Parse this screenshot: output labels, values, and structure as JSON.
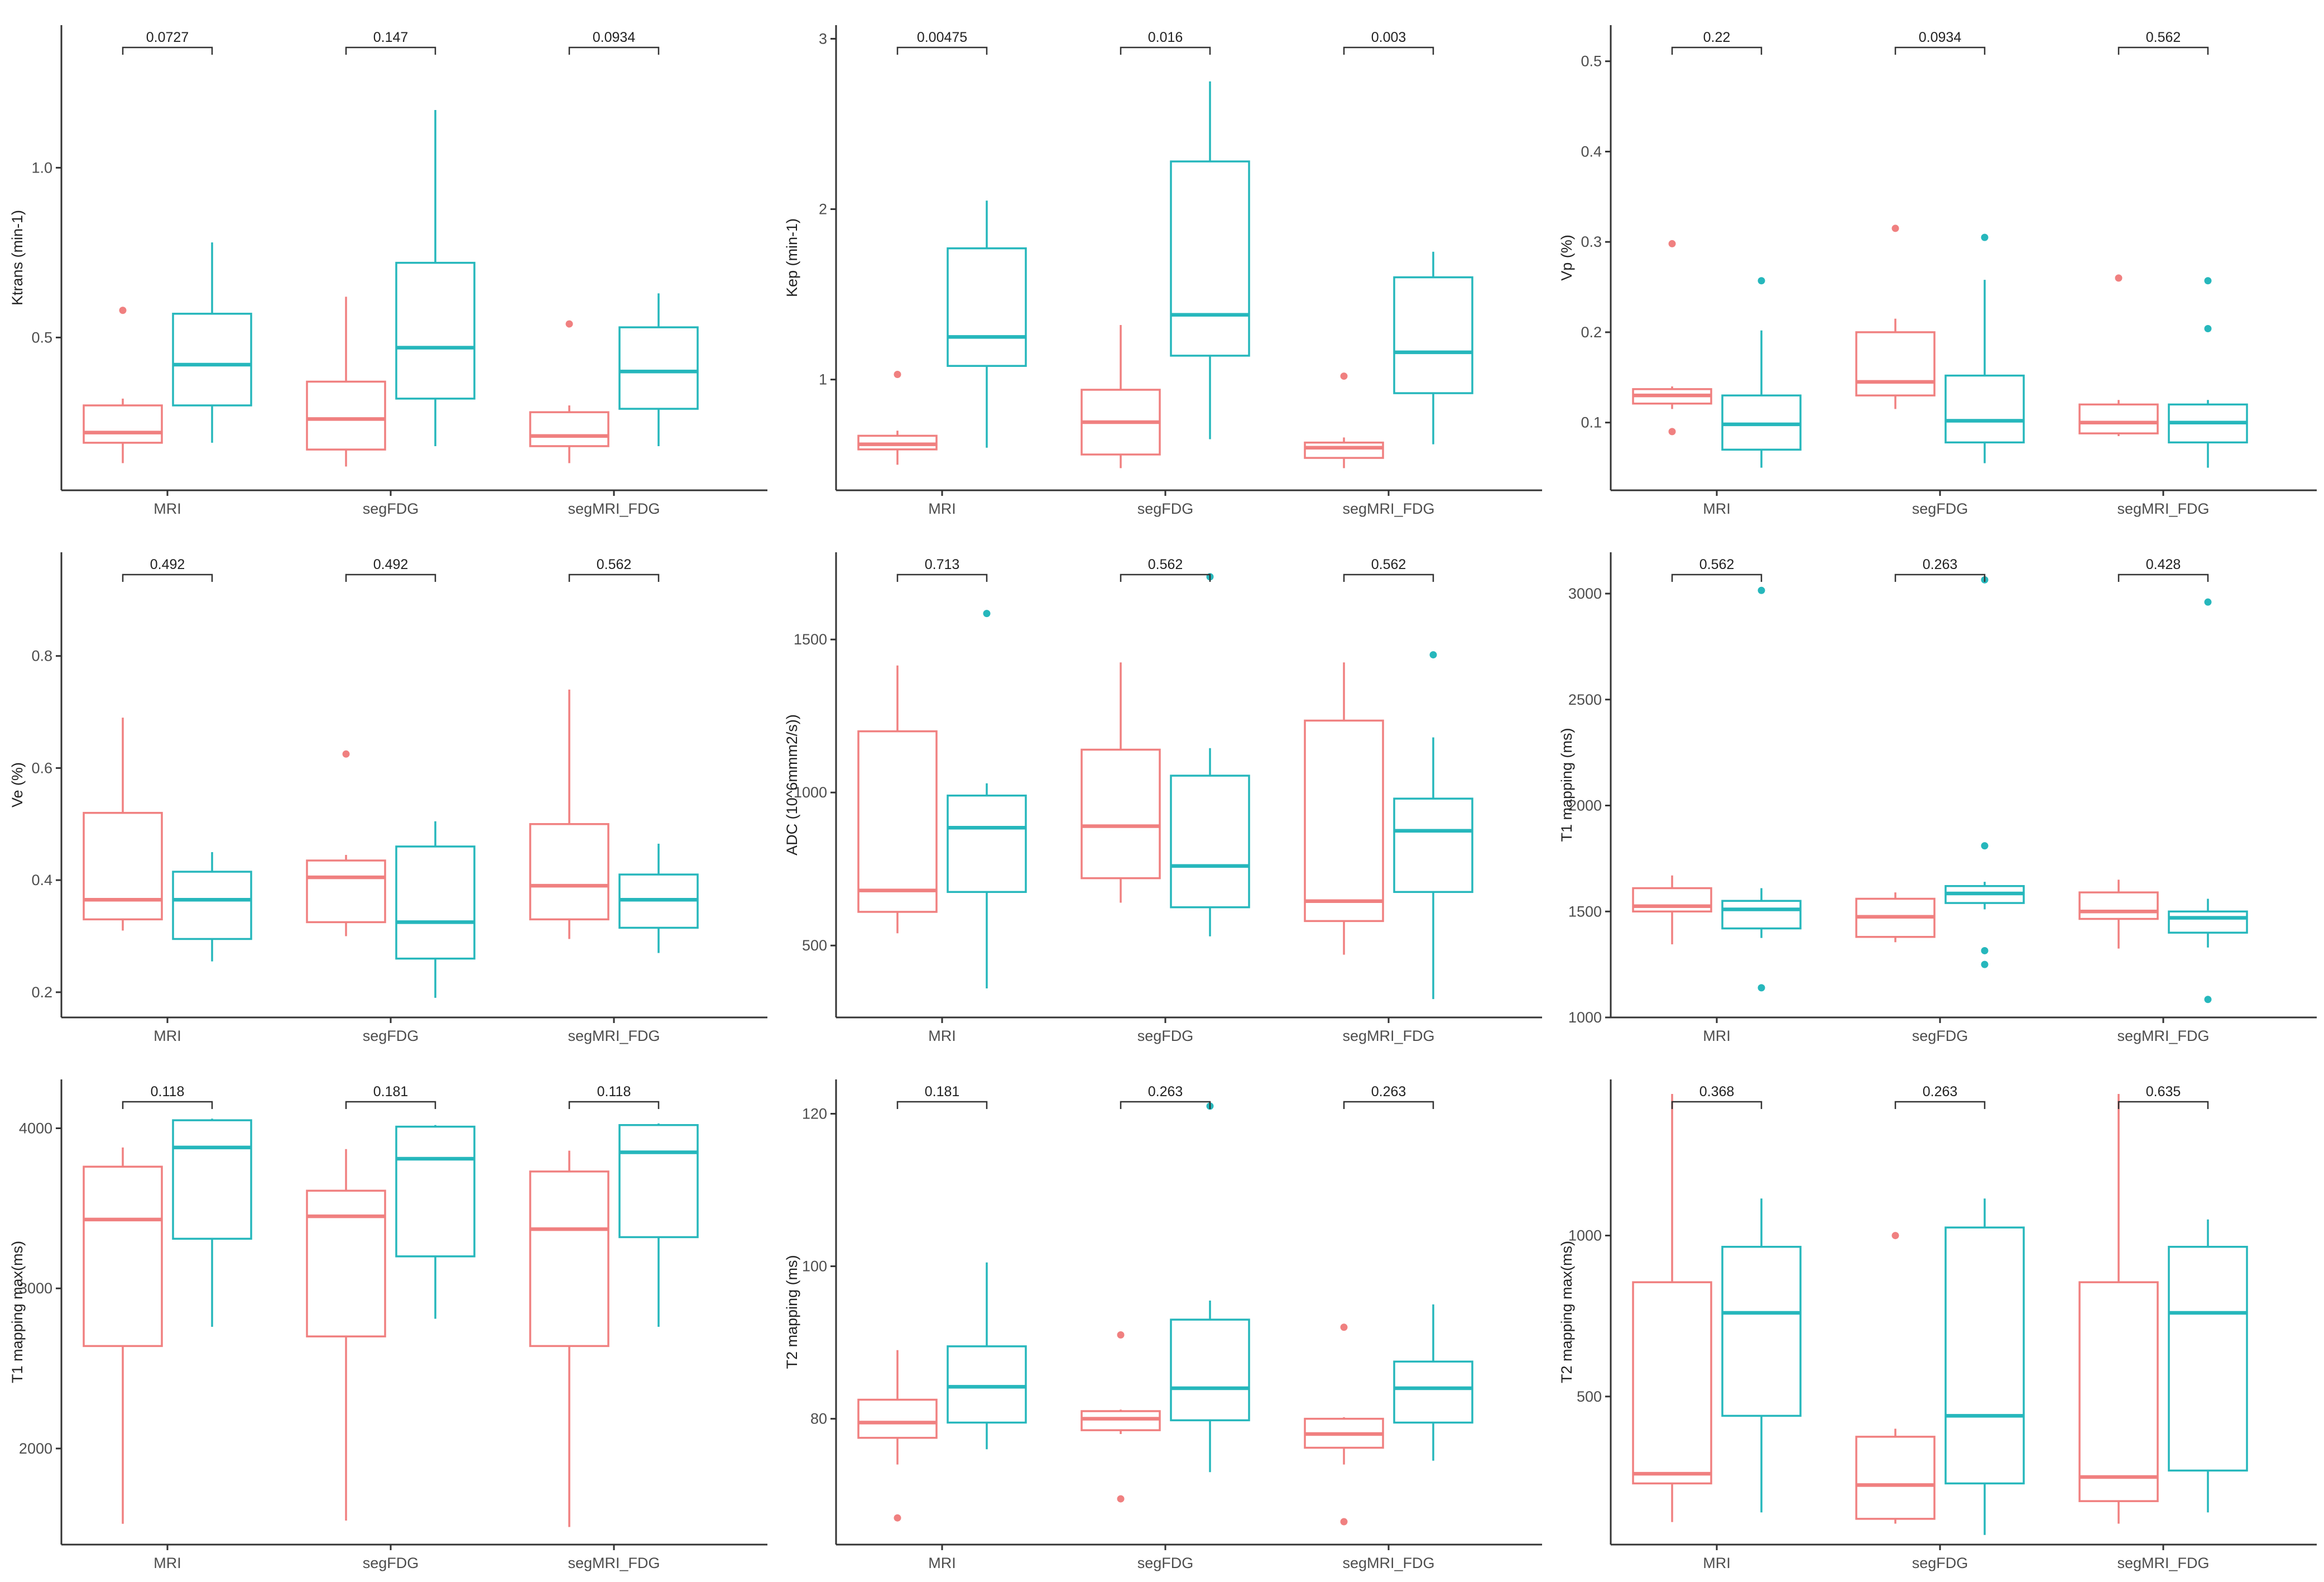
{
  "colors": {
    "group1": "#F08080",
    "group2": "#26B7BC",
    "axis": "#333333"
  },
  "chart_data": [
    {
      "type": "box",
      "ylabel": "Ktrans (min-1)",
      "ylim": [
        0.05,
        1.42
      ],
      "yticks": [
        {
          "v": 0.5,
          "label": "0.5"
        },
        {
          "v": 1.0,
          "label": "1.0"
        }
      ],
      "categories": [
        "MRI",
        "segFDG",
        "segMRI_FDG"
      ],
      "pvalues": [
        "0.0727",
        "0.147",
        "0.0934"
      ],
      "series": [
        {
          "name": "group1",
          "boxes": [
            {
              "wl": 0.13,
              "q1": 0.19,
              "med": 0.22,
              "q3": 0.3,
              "wh": 0.32,
              "out": [
                0.58
              ]
            },
            {
              "wl": 0.12,
              "q1": 0.17,
              "med": 0.26,
              "q3": 0.37,
              "wh": 0.62,
              "out": []
            },
            {
              "wl": 0.13,
              "q1": 0.18,
              "med": 0.21,
              "q3": 0.28,
              "wh": 0.3,
              "out": [
                0.54
              ]
            }
          ]
        },
        {
          "name": "group2",
          "boxes": [
            {
              "wl": 0.19,
              "q1": 0.3,
              "med": 0.42,
              "q3": 0.57,
              "wh": 0.78,
              "out": []
            },
            {
              "wl": 0.18,
              "q1": 0.32,
              "med": 0.47,
              "q3": 0.72,
              "wh": 1.17,
              "out": []
            },
            {
              "wl": 0.18,
              "q1": 0.29,
              "med": 0.4,
              "q3": 0.53,
              "wh": 0.63,
              "out": []
            }
          ]
        }
      ]
    },
    {
      "type": "box",
      "ylabel": "Kep (min-1)",
      "ylim": [
        0.35,
        3.08
      ],
      "yticks": [
        {
          "v": 1,
          "label": "1"
        },
        {
          "v": 2,
          "label": "2"
        },
        {
          "v": 3,
          "label": "3"
        }
      ],
      "categories": [
        "MRI",
        "segFDG",
        "segMRI_FDG"
      ],
      "pvalues": [
        "0.00475",
        "0.016",
        "0.003"
      ],
      "series": [
        {
          "name": "group1",
          "boxes": [
            {
              "wl": 0.5,
              "q1": 0.59,
              "med": 0.62,
              "q3": 0.67,
              "wh": 0.7,
              "out": [
                1.03
              ]
            },
            {
              "wl": 0.48,
              "q1": 0.56,
              "med": 0.75,
              "q3": 0.94,
              "wh": 1.32,
              "out": []
            },
            {
              "wl": 0.48,
              "q1": 0.54,
              "med": 0.6,
              "q3": 0.63,
              "wh": 0.66,
              "out": [
                1.02
              ]
            }
          ]
        },
        {
          "name": "group2",
          "boxes": [
            {
              "wl": 0.6,
              "q1": 1.08,
              "med": 1.25,
              "q3": 1.77,
              "wh": 2.05,
              "out": []
            },
            {
              "wl": 0.65,
              "q1": 1.14,
              "med": 1.38,
              "q3": 2.28,
              "wh": 2.75,
              "out": []
            },
            {
              "wl": 0.62,
              "q1": 0.92,
              "med": 1.16,
              "q3": 1.6,
              "wh": 1.75,
              "out": []
            }
          ]
        }
      ]
    },
    {
      "type": "box",
      "ylabel": "Vp (%)",
      "ylim": [
        0.025,
        0.54
      ],
      "yticks": [
        {
          "v": 0.1,
          "label": "0.1"
        },
        {
          "v": 0.2,
          "label": "0.2"
        },
        {
          "v": 0.3,
          "label": "0.3"
        },
        {
          "v": 0.4,
          "label": "0.4"
        },
        {
          "v": 0.5,
          "label": "0.5"
        }
      ],
      "categories": [
        "MRI",
        "segFDG",
        "segMRI_FDG"
      ],
      "pvalues": [
        "0.22",
        "0.0934",
        "0.562"
      ],
      "series": [
        {
          "name": "group1",
          "boxes": [
            {
              "wl": 0.115,
              "q1": 0.121,
              "med": 0.13,
              "q3": 0.137,
              "wh": 0.14,
              "out": [
                0.298,
                0.09
              ]
            },
            {
              "wl": 0.115,
              "q1": 0.13,
              "med": 0.145,
              "q3": 0.2,
              "wh": 0.215,
              "out": [
                0.315
              ]
            },
            {
              "wl": 0.085,
              "q1": 0.088,
              "med": 0.1,
              "q3": 0.12,
              "wh": 0.125,
              "out": [
                0.26
              ]
            }
          ]
        },
        {
          "name": "group2",
          "boxes": [
            {
              "wl": 0.05,
              "q1": 0.07,
              "med": 0.098,
              "q3": 0.13,
              "wh": 0.202,
              "out": [
                0.257
              ]
            },
            {
              "wl": 0.055,
              "q1": 0.078,
              "med": 0.102,
              "q3": 0.152,
              "wh": 0.258,
              "out": [
                0.305
              ]
            },
            {
              "wl": 0.05,
              "q1": 0.078,
              "med": 0.1,
              "q3": 0.12,
              "wh": 0.125,
              "out": [
                0.257,
                0.204
              ]
            }
          ]
        }
      ]
    },
    {
      "type": "box",
      "ylabel": "Ve (%)",
      "ylim": [
        0.155,
        0.985
      ],
      "yticks": [
        {
          "v": 0.2,
          "label": "0.2"
        },
        {
          "v": 0.4,
          "label": "0.4"
        },
        {
          "v": 0.6,
          "label": "0.6"
        },
        {
          "v": 0.8,
          "label": "0.8"
        }
      ],
      "categories": [
        "MRI",
        "segFDG",
        "segMRI_FDG"
      ],
      "pvalues": [
        "0.492",
        "0.492",
        "0.562"
      ],
      "series": [
        {
          "name": "group1",
          "boxes": [
            {
              "wl": 0.31,
              "q1": 0.33,
              "med": 0.365,
              "q3": 0.52,
              "wh": 0.69,
              "out": []
            },
            {
              "wl": 0.3,
              "q1": 0.325,
              "med": 0.405,
              "q3": 0.435,
              "wh": 0.445,
              "out": [
                0.625
              ]
            },
            {
              "wl": 0.295,
              "q1": 0.33,
              "med": 0.39,
              "q3": 0.5,
              "wh": 0.74,
              "out": []
            }
          ]
        },
        {
          "name": "group2",
          "boxes": [
            {
              "wl": 0.255,
              "q1": 0.295,
              "med": 0.365,
              "q3": 0.415,
              "wh": 0.45,
              "out": []
            },
            {
              "wl": 0.19,
              "q1": 0.26,
              "med": 0.325,
              "q3": 0.46,
              "wh": 0.505,
              "out": []
            },
            {
              "wl": 0.27,
              "q1": 0.315,
              "med": 0.365,
              "q3": 0.41,
              "wh": 0.465,
              "out": []
            }
          ]
        }
      ]
    },
    {
      "type": "box",
      "ylabel": "ADC (10^6mmm2/s))",
      "ylim": [
        265,
        1785
      ],
      "yticks": [
        {
          "v": 500,
          "label": "500"
        },
        {
          "v": 1000,
          "label": "1000"
        },
        {
          "v": 1500,
          "label": "1500"
        }
      ],
      "categories": [
        "MRI",
        "segFDG",
        "segMRI_FDG"
      ],
      "pvalues": [
        "0.713",
        "0.562",
        "0.562"
      ],
      "series": [
        {
          "name": "group1",
          "boxes": [
            {
              "wl": 540,
              "q1": 610,
              "med": 680,
              "q3": 1200,
              "wh": 1415,
              "out": []
            },
            {
              "wl": 640,
              "q1": 720,
              "med": 890,
              "q3": 1140,
              "wh": 1425,
              "out": []
            },
            {
              "wl": 470,
              "q1": 580,
              "med": 645,
              "q3": 1235,
              "wh": 1425,
              "out": []
            }
          ]
        },
        {
          "name": "group2",
          "boxes": [
            {
              "wl": 360,
              "q1": 675,
              "med": 885,
              "q3": 990,
              "wh": 1030,
              "out": [
                1585
              ]
            },
            {
              "wl": 530,
              "q1": 625,
              "med": 760,
              "q3": 1055,
              "wh": 1145,
              "out": [
                1705
              ]
            },
            {
              "wl": 325,
              "q1": 675,
              "med": 875,
              "q3": 980,
              "wh": 1180,
              "out": [
                1450
              ]
            }
          ]
        }
      ]
    },
    {
      "type": "box",
      "ylabel": "T1 mapping (ms)",
      "ylim": [
        1000,
        3195
      ],
      "yticks": [
        {
          "v": 1000,
          "label": "1000"
        },
        {
          "v": 1500,
          "label": "1500"
        },
        {
          "v": 2000,
          "label": "2000"
        },
        {
          "v": 2500,
          "label": "2500"
        },
        {
          "v": 3000,
          "label": "3000"
        }
      ],
      "categories": [
        "MRI",
        "segFDG",
        "segMRI_FDG"
      ],
      "pvalues": [
        "0.562",
        "0.263",
        "0.428"
      ],
      "series": [
        {
          "name": "group1",
          "boxes": [
            {
              "wl": 1345,
              "q1": 1500,
              "med": 1525,
              "q3": 1610,
              "wh": 1670,
              "out": []
            },
            {
              "wl": 1355,
              "q1": 1380,
              "med": 1475,
              "q3": 1560,
              "wh": 1590,
              "out": []
            },
            {
              "wl": 1325,
              "q1": 1465,
              "med": 1500,
              "q3": 1590,
              "wh": 1650,
              "out": []
            }
          ]
        },
        {
          "name": "group2",
          "boxes": [
            {
              "wl": 1375,
              "q1": 1420,
              "med": 1510,
              "q3": 1550,
              "wh": 1610,
              "out": [
                3015,
                1140
              ]
            },
            {
              "wl": 1510,
              "q1": 1540,
              "med": 1585,
              "q3": 1620,
              "wh": 1640,
              "out": [
                3065,
                1810,
                1315,
                1250
              ]
            },
            {
              "wl": 1330,
              "q1": 1400,
              "med": 1470,
              "q3": 1500,
              "wh": 1560,
              "out": [
                2960,
                1085
              ]
            }
          ]
        }
      ]
    },
    {
      "type": "box",
      "ylabel": "T1 mapping max(ms)",
      "ylim": [
        1400,
        4305
      ],
      "yticks": [
        {
          "v": 2000,
          "label": "2000"
        },
        {
          "v": 3000,
          "label": "3000"
        },
        {
          "v": 4000,
          "label": "4000"
        }
      ],
      "categories": [
        "MRI",
        "segFDG",
        "segMRI_FDG"
      ],
      "pvalues": [
        "0.118",
        "0.181",
        "0.118"
      ],
      "series": [
        {
          "name": "group1",
          "boxes": [
            {
              "wl": 1530,
              "q1": 2640,
              "med": 3430,
              "q3": 3760,
              "wh": 3880,
              "out": []
            },
            {
              "wl": 1550,
              "q1": 2700,
              "med": 3450,
              "q3": 3610,
              "wh": 3870,
              "out": []
            },
            {
              "wl": 1510,
              "q1": 2640,
              "med": 3370,
              "q3": 3730,
              "wh": 3860,
              "out": []
            }
          ]
        },
        {
          "name": "group2",
          "boxes": [
            {
              "wl": 2760,
              "q1": 3310,
              "med": 3880,
              "q3": 4050,
              "wh": 4060,
              "out": []
            },
            {
              "wl": 2810,
              "q1": 3200,
              "med": 3810,
              "q3": 4010,
              "wh": 4020,
              "out": []
            },
            {
              "wl": 2760,
              "q1": 3320,
              "med": 3850,
              "q3": 4020,
              "wh": 4030,
              "out": []
            }
          ]
        }
      ]
    },
    {
      "type": "box",
      "ylabel": "T2 mapping (ms)",
      "ylim": [
        63.5,
        124.5
      ],
      "yticks": [
        {
          "v": 80,
          "label": "80"
        },
        {
          "v": 100,
          "label": "100"
        },
        {
          "v": 120,
          "label": "120"
        }
      ],
      "categories": [
        "MRI",
        "segFDG",
        "segMRI_FDG"
      ],
      "pvalues": [
        "0.181",
        "0.263",
        "0.263"
      ],
      "series": [
        {
          "name": "group1",
          "boxes": [
            {
              "wl": 74,
              "q1": 77.5,
              "med": 79.5,
              "q3": 82.5,
              "wh": 89,
              "out": [
                67
              ]
            },
            {
              "wl": 78,
              "q1": 78.5,
              "med": 80,
              "q3": 81,
              "wh": 81.2,
              "out": [
                91,
                69.5
              ]
            },
            {
              "wl": 74,
              "q1": 76.2,
              "med": 78,
              "q3": 80,
              "wh": 80.2,
              "out": [
                92,
                66.5
              ]
            }
          ]
        },
        {
          "name": "group2",
          "boxes": [
            {
              "wl": 76,
              "q1": 79.5,
              "med": 84.2,
              "q3": 89.5,
              "wh": 100.5,
              "out": []
            },
            {
              "wl": 73,
              "q1": 79.8,
              "med": 84,
              "q3": 93,
              "wh": 95.5,
              "out": [
                121
              ]
            },
            {
              "wl": 74.5,
              "q1": 79.5,
              "med": 84,
              "q3": 87.5,
              "wh": 95,
              "out": []
            }
          ]
        }
      ]
    },
    {
      "type": "box",
      "ylabel": "T2 mapping max(ms)",
      "ylim": [
        40,
        1485
      ],
      "yticks": [
        {
          "v": 500,
          "label": "500"
        },
        {
          "v": 1000,
          "label": "1000"
        }
      ],
      "categories": [
        "MRI",
        "segFDG",
        "segMRI_FDG"
      ],
      "pvalues": [
        "0.368",
        "0.263",
        "0.635"
      ],
      "series": [
        {
          "name": "group1",
          "boxes": [
            {
              "wl": 110,
              "q1": 230,
              "med": 260,
              "q3": 855,
              "wh": 1440,
              "out": []
            },
            {
              "wl": 105,
              "q1": 120,
              "med": 225,
              "q3": 375,
              "wh": 400,
              "out": [
                1000
              ]
            },
            {
              "wl": 105,
              "q1": 175,
              "med": 250,
              "q3": 855,
              "wh": 1440,
              "out": []
            }
          ]
        },
        {
          "name": "group2",
          "boxes": [
            {
              "wl": 140,
              "q1": 440,
              "med": 760,
              "q3": 965,
              "wh": 1115,
              "out": []
            },
            {
              "wl": 70,
              "q1": 230,
              "med": 440,
              "q3": 1025,
              "wh": 1115,
              "out": []
            },
            {
              "wl": 140,
              "q1": 270,
              "med": 760,
              "q3": 965,
              "wh": 1050,
              "out": []
            }
          ]
        }
      ]
    }
  ]
}
